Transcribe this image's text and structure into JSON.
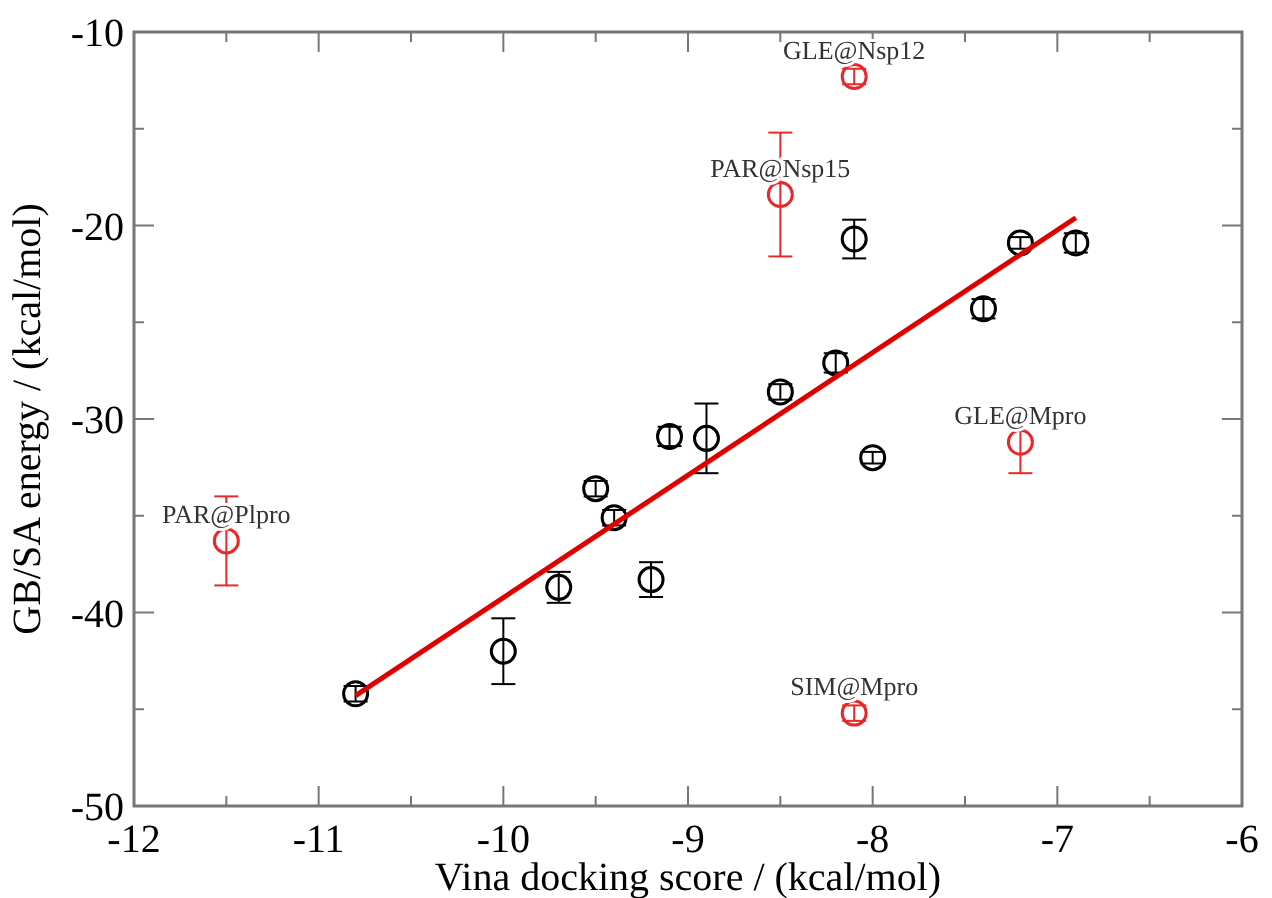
{
  "chart_data": {
    "type": "scatter",
    "xlabel": "Vina docking score / (kcal/mol)",
    "ylabel": "GB/SA energy / (kcal/mol)",
    "xlim": [
      -12,
      -6
    ],
    "ylim": [
      -50,
      -10
    ],
    "xticks": [
      -12,
      {
        "value": -11.5,
        "label": null
      },
      -11,
      {
        "value": -10.5,
        "label": null
      },
      -10,
      {
        "value": -9.5,
        "label": null
      },
      -9,
      {
        "value": -8.5,
        "label": null
      },
      -8,
      {
        "value": -7.5,
        "label": null
      },
      -7,
      {
        "value": -6.5,
        "label": null
      },
      -6
    ],
    "yticks": [
      -50,
      {
        "value": -45,
        "label": null
      },
      -40,
      {
        "value": -35,
        "label": null
      },
      -30,
      {
        "value": -25,
        "label": null
      },
      -20,
      {
        "value": -15,
        "label": null
      },
      -10
    ],
    "marker": "circle",
    "grid": false,
    "series": [
      {
        "color": "#000000",
        "x": [
          -10.8,
          -10,
          -9.7,
          -9.5,
          -9.4,
          -9.2,
          -9.1,
          -8.9,
          -8.5,
          -8.2,
          -8.1,
          -8,
          -7.4,
          -7.2,
          -6.9
        ],
        "values": [
          -44.2,
          -42,
          -38.7,
          -33.6,
          -35.1,
          -38.3,
          -30.9,
          -31,
          -28.6,
          -27.1,
          -20.7,
          -32,
          -24.3,
          -20.9,
          -20.9
        ],
        "errors": [
          0.4,
          1.7,
          0.8,
          0.4,
          0.4,
          0.9,
          0.5,
          1.8,
          0.4,
          0.5,
          1,
          0.3,
          0.5,
          0.3,
          0.5
        ]
      },
      {
        "color": "#e8292b",
        "x": [
          -11.5,
          -8.5,
          -8.1,
          -7.2,
          -8.1
        ],
        "values": [
          -36.3,
          -18.4,
          -12.3,
          -31.2,
          -45.2
        ],
        "errors": [
          2.3,
          3.2,
          0.4,
          1.6,
          0.4
        ]
      },
      {
        "type": "line",
        "color": "#e00000",
        "marker": "none",
        "x": [
          -10.8,
          -6.9
        ],
        "values": [
          -44.3,
          -19.6
        ]
      }
    ],
    "annotations": [
      {
        "text": "PAR@Plpro",
        "x": -11.5,
        "y": -36.3
      },
      {
        "text": "PAR@Nsp15",
        "x": -8.5,
        "y": -18.4
      },
      {
        "text": "GLE@Nsp12",
        "x": -8.1,
        "y": -12.3
      },
      {
        "text": "GLE@Mpro",
        "x": -7.2,
        "y": -31.2
      },
      {
        "text": "SIM@Mpro",
        "x": -8.1,
        "y": -45.2
      }
    ]
  }
}
